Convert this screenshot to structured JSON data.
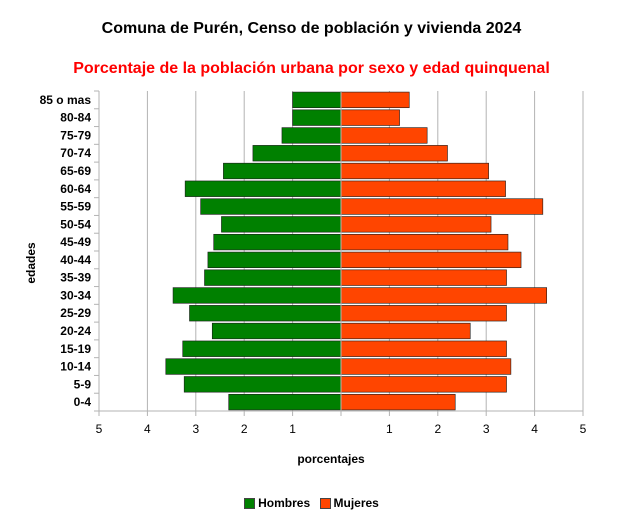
{
  "title": "Comuna de Purén, Censo de población y vivienda 2024",
  "subtitle": "Porcentaje de la población urbana por sexo y edad quinquenal",
  "colors": {
    "hombres": "#008000",
    "mujeres": "#ff4500",
    "subtitle": "#ff0000",
    "grid": "#b3b3b3"
  },
  "chart_data": {
    "type": "bar",
    "orientation": "horizontal",
    "style": "population-pyramid",
    "categories": [
      "85 o mas",
      "80-84",
      "75-79",
      "70-74",
      "65-69",
      "60-64",
      "55-59",
      "50-54",
      "45-49",
      "40-44",
      "35-39",
      "30-34",
      "25-29",
      "20-24",
      "15-19",
      "10-14",
      "5-9",
      "0-4"
    ],
    "series": [
      {
        "name": "Hombres",
        "side": "left",
        "values": [
          1.0,
          1.0,
          1.22,
          1.82,
          2.43,
          3.22,
          2.9,
          2.47,
          2.63,
          2.75,
          2.82,
          3.47,
          3.13,
          2.66,
          3.27,
          3.62,
          3.24,
          2.32
        ]
      },
      {
        "name": "Mujeres",
        "side": "right",
        "values": [
          1.41,
          1.21,
          1.78,
          2.2,
          3.05,
          3.4,
          4.17,
          3.1,
          3.45,
          3.72,
          3.42,
          4.25,
          3.42,
          2.67,
          3.42,
          3.51,
          3.42,
          2.36
        ]
      }
    ],
    "xlabel": "porcentajes",
    "ylabel": "edades",
    "xlim": [
      -5,
      5
    ],
    "x_tick_labels": [
      "5",
      "4",
      "3",
      "2",
      "1",
      "",
      "1",
      "2",
      "3",
      "4",
      "5"
    ],
    "grid": true,
    "legend_position": "bottom"
  }
}
